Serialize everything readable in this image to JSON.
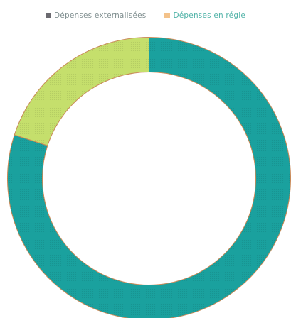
{
  "chart_data": {
    "type": "pie",
    "variant": "donut",
    "legend_position": "top",
    "series": [
      {
        "name": "Dépenses externalisées",
        "value": 80,
        "color": "#1aa19e",
        "legend_color": "#6b6a70",
        "legend_text_color": "#7f8e8f"
      },
      {
        "name": "Dépenses en régie",
        "value": 20,
        "color": "#c5df6c",
        "legend_color": "#f3c28a",
        "legend_text_color": "#4fb2a7"
      }
    ],
    "start_angle": 0,
    "direction": "clockwise",
    "slice_stroke_color": "#c98a58"
  }
}
